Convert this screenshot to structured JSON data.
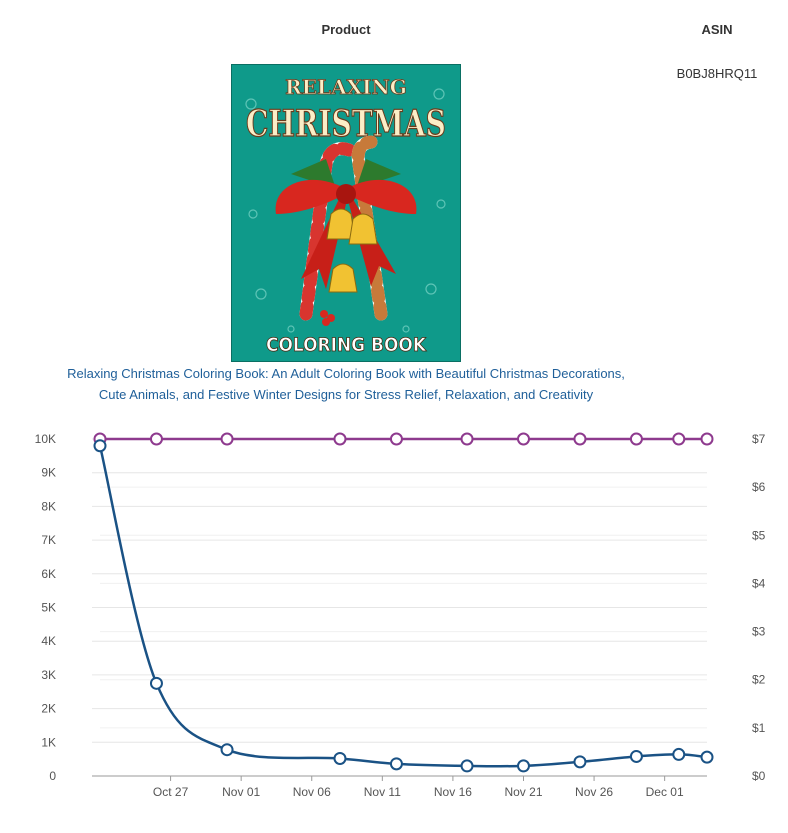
{
  "table": {
    "headers": {
      "product": "Product",
      "asin": "ASIN"
    },
    "row": {
      "asin": "B0BJ8HRQ11",
      "title_line1": "Relaxing Christmas Coloring Book: An Adult Coloring Book with Beautiful Christmas Decorations,",
      "title_line2": "Cute Animals, and Festive Winter Designs for Stress Relief, Relaxation, and Creativity",
      "cover": {
        "title_top": "RELAXING",
        "title_main": "CHRISTMAS",
        "subtitle": "COLORING BOOK",
        "background_color": "#0f9a8a"
      }
    }
  },
  "chart_data": {
    "type": "line",
    "x_axis": {
      "tick_labels": [
        "Oct 27",
        "Nov 01",
        "Nov 06",
        "Nov 11",
        "Nov 16",
        "Nov 21",
        "Nov 26",
        "Dec 01"
      ],
      "tick_dates": [
        "2022-10-27",
        "2022-11-01",
        "2022-11-06",
        "2022-11-11",
        "2022-11-16",
        "2022-11-21",
        "2022-11-26",
        "2022-12-01"
      ],
      "range": [
        "2022-10-22",
        "2022-12-04"
      ]
    },
    "y_left": {
      "tick_labels": [
        "0",
        "1K",
        "2K",
        "3K",
        "4K",
        "5K",
        "6K",
        "7K",
        "8K",
        "9K",
        "10K"
      ],
      "range": [
        0,
        10000
      ]
    },
    "y_right": {
      "tick_labels": [
        "$0",
        "$1",
        "$2",
        "$3",
        "$4",
        "$5",
        "$6",
        "$7"
      ],
      "range": [
        0,
        7
      ]
    },
    "grid": true,
    "series": [
      {
        "axis": "left",
        "color": "#1a5285",
        "points": [
          [
            "2022-10-22",
            9800
          ],
          [
            "2022-10-26",
            2750
          ],
          [
            "2022-10-31",
            780
          ],
          [
            "2022-11-08",
            520
          ],
          [
            "2022-11-12",
            360
          ],
          [
            "2022-11-17",
            300
          ],
          [
            "2022-11-21",
            300
          ],
          [
            "2022-11-25",
            420
          ],
          [
            "2022-11-29",
            580
          ],
          [
            "2022-12-02",
            640
          ],
          [
            "2022-12-04",
            560
          ]
        ]
      },
      {
        "axis": "right",
        "color": "#8e3a8e",
        "points": [
          [
            "2022-10-22",
            7
          ],
          [
            "2022-10-26",
            7
          ],
          [
            "2022-10-31",
            7
          ],
          [
            "2022-11-08",
            7
          ],
          [
            "2022-11-12",
            7
          ],
          [
            "2022-11-17",
            7
          ],
          [
            "2022-11-21",
            7
          ],
          [
            "2022-11-25",
            7
          ],
          [
            "2022-11-29",
            7
          ],
          [
            "2022-12-02",
            7
          ],
          [
            "2022-12-04",
            7
          ]
        ]
      }
    ]
  }
}
